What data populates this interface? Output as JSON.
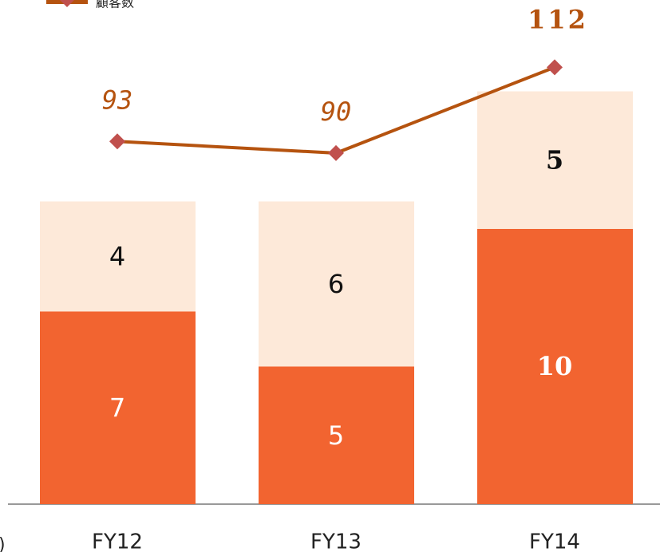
{
  "chart_data": {
    "type": "bar",
    "categories": [
      "FY12",
      "FY13",
      "FY14"
    ],
    "series": [
      {
        "color": "#f26430",
        "values": [
          7,
          5,
          10
        ]
      },
      {
        "color": "#fde9d9",
        "values": [
          4,
          6,
          5
        ]
      },
      {
        "type": "line",
        "name": "顧客数",
        "color": "#b5530f",
        "marker_color": "#c0504d",
        "axis": "y2",
        "values": [
          93,
          90,
          112
        ]
      }
    ],
    "ylim": [
      0,
      18
    ],
    "y2lim": [
      0,
      127
    ],
    "stacked": true,
    "annotation": ")"
  }
}
